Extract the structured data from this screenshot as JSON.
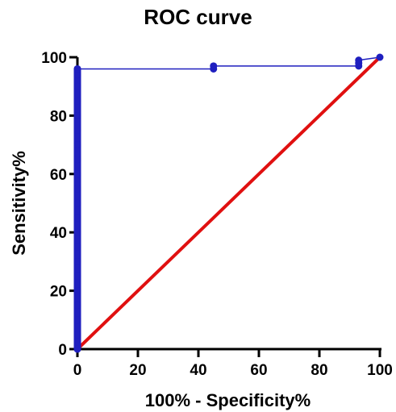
{
  "chart_data": {
    "type": "line",
    "title": "ROC curve",
    "xlabel": "100% - Specificity%",
    "ylabel": "Sensitivity%",
    "xlim": [
      0,
      100
    ],
    "ylim": [
      0,
      100
    ],
    "xticks": [
      0,
      20,
      40,
      60,
      80,
      100
    ],
    "yticks": [
      0,
      20,
      40,
      60,
      80,
      100
    ],
    "grid": false,
    "series": [
      {
        "color": "#1f1fbf",
        "marker": "circle",
        "x": [
          0,
          0,
          0,
          0,
          0,
          0,
          0,
          0,
          0,
          0,
          0,
          0,
          0,
          0,
          0,
          0,
          0,
          0,
          0,
          0,
          0,
          45,
          45,
          93,
          93,
          93,
          100
        ],
        "y": [
          0,
          5,
          10,
          15,
          20,
          25,
          30,
          35,
          40,
          45,
          50,
          55,
          60,
          65,
          70,
          75,
          80,
          85,
          90,
          94,
          96,
          96,
          97,
          97,
          98,
          99,
          100
        ]
      },
      {
        "color": "#e01010",
        "marker": "none",
        "x": [
          0,
          100
        ],
        "y": [
          0,
          100
        ]
      }
    ]
  }
}
